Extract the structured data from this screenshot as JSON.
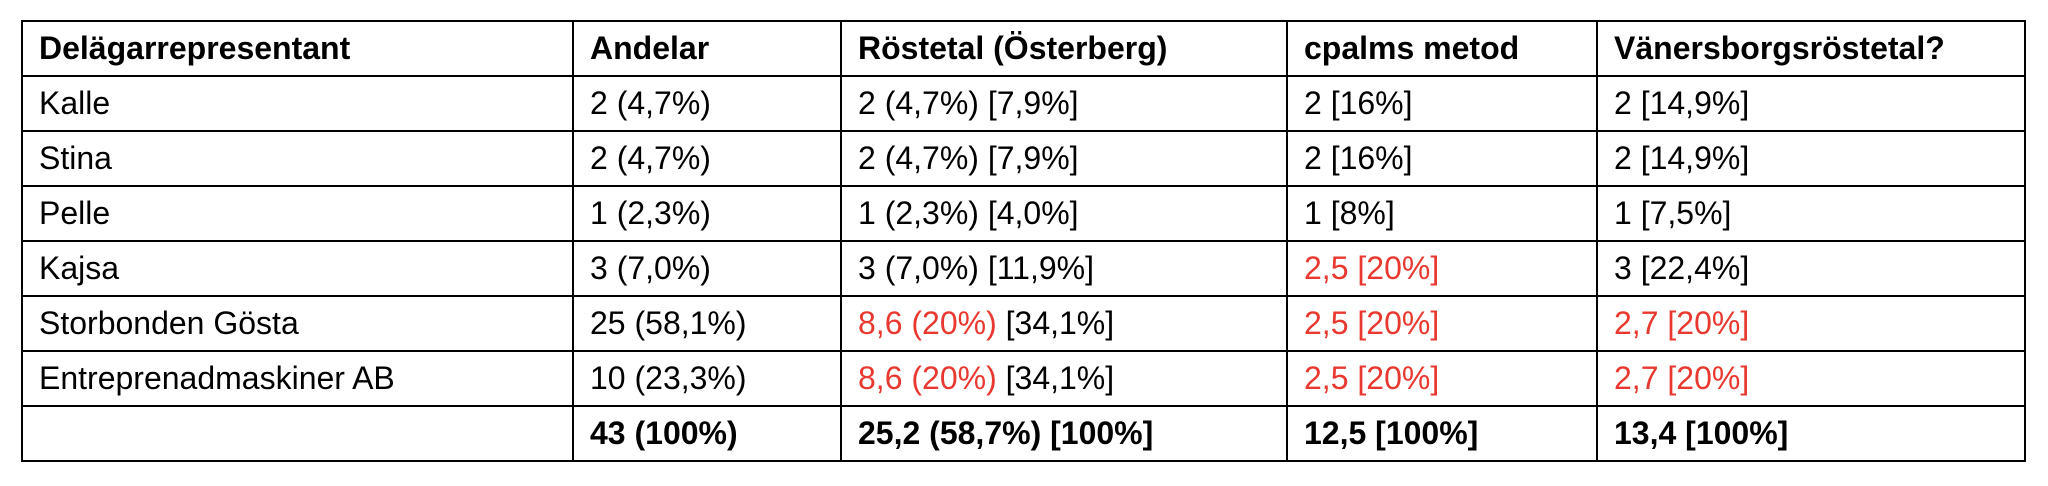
{
  "table": {
    "header": [
      "Delägarrepresentant",
      "Andelar",
      "Röstetal (Österberg)",
      "cpalms metod",
      "Vänersborgsröstetal?"
    ],
    "rows": [
      [
        [
          {
            "text": "Kalle"
          }
        ],
        [
          {
            "text": "2 (4,7%)"
          }
        ],
        [
          {
            "text": "2 (4,7%) [7,9%]"
          }
        ],
        [
          {
            "text": "2 [16%]"
          }
        ],
        [
          {
            "text": "2 [14,9%]"
          }
        ]
      ],
      [
        [
          {
            "text": "Stina"
          }
        ],
        [
          {
            "text": "2 (4,7%)"
          }
        ],
        [
          {
            "text": "2 (4,7%) [7,9%]"
          }
        ],
        [
          {
            "text": "2 [16%]"
          }
        ],
        [
          {
            "text": "2 [14,9%]"
          }
        ]
      ],
      [
        [
          {
            "text": "Pelle"
          }
        ],
        [
          {
            "text": "1 (2,3%)"
          }
        ],
        [
          {
            "text": "1 (2,3%) [4,0%]"
          }
        ],
        [
          {
            "text": "1 [8%]"
          }
        ],
        [
          {
            "text": "1 [7,5%]"
          }
        ]
      ],
      [
        [
          {
            "text": "Kajsa"
          }
        ],
        [
          {
            "text": "3 (7,0%)"
          }
        ],
        [
          {
            "text": "3 (7,0%) [11,9%]"
          }
        ],
        [
          {
            "text": "2,5 [20%]",
            "color": "#e8382f"
          }
        ],
        [
          {
            "text": "3 [22,4%]"
          }
        ]
      ],
      [
        [
          {
            "text": "Storbonden Gösta"
          }
        ],
        [
          {
            "text": "25 (58,1%)"
          }
        ],
        [
          {
            "text": "8,6 (20%)",
            "color": "#e8382f"
          },
          {
            "text": " [34,1%]"
          }
        ],
        [
          {
            "text": "2,5 [20%]",
            "color": "#e8382f"
          }
        ],
        [
          {
            "text": "2,7 [20%]",
            "color": "#e8382f"
          }
        ]
      ],
      [
        [
          {
            "text": "Entreprenadmaskiner AB"
          }
        ],
        [
          {
            "text": "10 (23,3%)"
          }
        ],
        [
          {
            "text": "8,6 (20%)",
            "color": "#e8382f"
          },
          {
            "text": " [34,1%]"
          }
        ],
        [
          {
            "text": "2,5 [20%]",
            "color": "#e8382f"
          }
        ],
        [
          {
            "text": "2,7 [20%]",
            "color": "#e8382f"
          }
        ]
      ]
    ],
    "total": [
      null,
      [
        {
          "text": "43 (100%)"
        }
      ],
      [
        {
          "text": "25,2 (58,7%) [100%]"
        }
      ],
      [
        {
          "text": "12,5 [100%]"
        }
      ],
      [
        {
          "text": "13,4 [100%]"
        }
      ]
    ]
  }
}
